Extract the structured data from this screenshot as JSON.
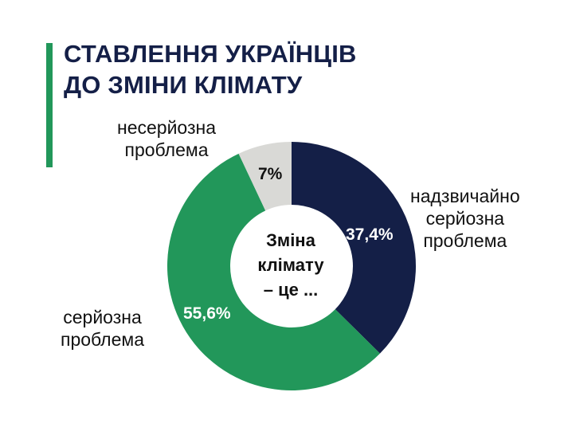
{
  "title": {
    "line1": "СТАВЛЕННЯ УКРАЇНЦІВ",
    "line2": "ДО ЗМІНИ КЛІМАТУ"
  },
  "center_label": {
    "line1": "Зміна",
    "line2": "клімату",
    "line3": "– це ..."
  },
  "colors": {
    "accent": "#22975a",
    "navy": "#141f47",
    "green": "#22975a",
    "gray": "#d9d9d6"
  },
  "segments": [
    {
      "label_lines": [
        "надзвичайно",
        "серйозна",
        "проблема"
      ],
      "value_text": "37,4%"
    },
    {
      "label_lines": [
        "серйозна",
        "проблема"
      ],
      "value_text": "55,6%"
    },
    {
      "label_lines": [
        "несерйозна",
        "проблема"
      ],
      "value_text": "7%"
    }
  ],
  "chart_data": {
    "type": "pie",
    "subtype": "donut",
    "title": "СТАВЛЕННЯ УКРАЇНЦІВ ДО ЗМІНИ КЛІМАТУ",
    "center_text": "Зміна клімату – це ...",
    "categories": [
      "надзвичайно серйозна проблема",
      "серйозна проблема",
      "несерйозна проблема"
    ],
    "values": [
      37.4,
      55.6,
      7.0
    ],
    "value_labels": [
      "37,4%",
      "55,6%",
      "7%"
    ],
    "colors": [
      "#141f47",
      "#22975a",
      "#d9d9d6"
    ],
    "start_angle": "12 o'clock, clockwise",
    "legend": "none (direct labels)"
  }
}
